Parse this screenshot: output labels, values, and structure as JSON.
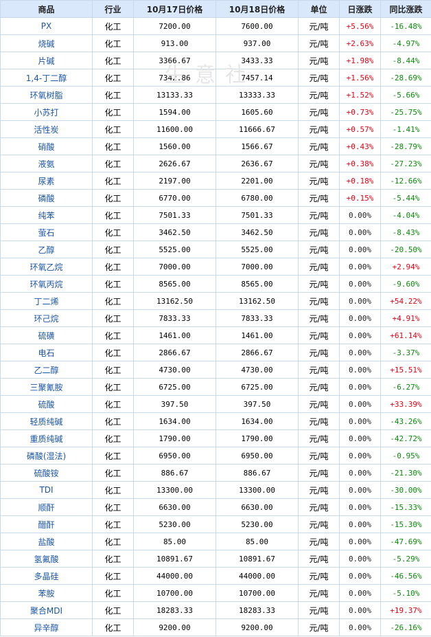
{
  "table": {
    "headers": [
      "商品",
      "行业",
      "10月17日价格",
      "10月18日价格",
      "单位",
      "日涨跌",
      "同比涨跌"
    ],
    "rows": [
      {
        "name": "PX",
        "industry": "化工",
        "p17": "7200.00",
        "p18": "7600.00",
        "unit": "元/吨",
        "day": "+5.56%",
        "yoy": "-16.48%"
      },
      {
        "name": "烧碱",
        "industry": "化工",
        "p17": "913.00",
        "p18": "937.00",
        "unit": "元/吨",
        "day": "+2.63%",
        "yoy": "-4.97%"
      },
      {
        "name": "片碱",
        "industry": "化工",
        "p17": "3366.67",
        "p18": "3433.33",
        "unit": "元/吨",
        "day": "+1.98%",
        "yoy": "-8.44%"
      },
      {
        "name": "1,4-丁二醇",
        "industry": "化工",
        "p17": "7342.86",
        "p18": "7457.14",
        "unit": "元/吨",
        "day": "+1.56%",
        "yoy": "-28.69%"
      },
      {
        "name": "环氧树脂",
        "industry": "化工",
        "p17": "13133.33",
        "p18": "13333.33",
        "unit": "元/吨",
        "day": "+1.52%",
        "yoy": "-5.66%"
      },
      {
        "name": "小苏打",
        "industry": "化工",
        "p17": "1594.00",
        "p18": "1605.60",
        "unit": "元/吨",
        "day": "+0.73%",
        "yoy": "-25.75%"
      },
      {
        "name": "活性炭",
        "industry": "化工",
        "p17": "11600.00",
        "p18": "11666.67",
        "unit": "元/吨",
        "day": "+0.57%",
        "yoy": "-1.41%"
      },
      {
        "name": "硝酸",
        "industry": "化工",
        "p17": "1560.00",
        "p18": "1566.67",
        "unit": "元/吨",
        "day": "+0.43%",
        "yoy": "-28.79%"
      },
      {
        "name": "液氨",
        "industry": "化工",
        "p17": "2626.67",
        "p18": "2636.67",
        "unit": "元/吨",
        "day": "+0.38%",
        "yoy": "-27.23%"
      },
      {
        "name": "尿素",
        "industry": "化工",
        "p17": "2197.00",
        "p18": "2201.00",
        "unit": "元/吨",
        "day": "+0.18%",
        "yoy": "-12.66%"
      },
      {
        "name": "磷酸",
        "industry": "化工",
        "p17": "6770.00",
        "p18": "6780.00",
        "unit": "元/吨",
        "day": "+0.15%",
        "yoy": "-5.44%"
      },
      {
        "name": "纯苯",
        "industry": "化工",
        "p17": "7501.33",
        "p18": "7501.33",
        "unit": "元/吨",
        "day": "0.00%",
        "yoy": "-4.04%"
      },
      {
        "name": "萤石",
        "industry": "化工",
        "p17": "3462.50",
        "p18": "3462.50",
        "unit": "元/吨",
        "day": "0.00%",
        "yoy": "-8.43%"
      },
      {
        "name": "乙醇",
        "industry": "化工",
        "p17": "5525.00",
        "p18": "5525.00",
        "unit": "元/吨",
        "day": "0.00%",
        "yoy": "-20.50%"
      },
      {
        "name": "环氧乙烷",
        "industry": "化工",
        "p17": "7000.00",
        "p18": "7000.00",
        "unit": "元/吨",
        "day": "0.00%",
        "yoy": "+2.94%"
      },
      {
        "name": "环氧丙烷",
        "industry": "化工",
        "p17": "8565.00",
        "p18": "8565.00",
        "unit": "元/吨",
        "day": "0.00%",
        "yoy": "-9.60%"
      },
      {
        "name": "丁二烯",
        "industry": "化工",
        "p17": "13162.50",
        "p18": "13162.50",
        "unit": "元/吨",
        "day": "0.00%",
        "yoy": "+54.22%"
      },
      {
        "name": "环己烷",
        "industry": "化工",
        "p17": "7833.33",
        "p18": "7833.33",
        "unit": "元/吨",
        "day": "0.00%",
        "yoy": "+4.91%"
      },
      {
        "name": "硫磺",
        "industry": "化工",
        "p17": "1461.00",
        "p18": "1461.00",
        "unit": "元/吨",
        "day": "0.00%",
        "yoy": "+61.14%"
      },
      {
        "name": "电石",
        "industry": "化工",
        "p17": "2866.67",
        "p18": "2866.67",
        "unit": "元/吨",
        "day": "0.00%",
        "yoy": "-3.37%"
      },
      {
        "name": "乙二醇",
        "industry": "化工",
        "p17": "4730.00",
        "p18": "4730.00",
        "unit": "元/吨",
        "day": "0.00%",
        "yoy": "+15.51%"
      },
      {
        "name": "三聚氰胺",
        "industry": "化工",
        "p17": "6725.00",
        "p18": "6725.00",
        "unit": "元/吨",
        "day": "0.00%",
        "yoy": "-6.27%"
      },
      {
        "name": "硫酸",
        "industry": "化工",
        "p17": "397.50",
        "p18": "397.50",
        "unit": "元/吨",
        "day": "0.00%",
        "yoy": "+33.39%"
      },
      {
        "name": "轻质纯碱",
        "industry": "化工",
        "p17": "1634.00",
        "p18": "1634.00",
        "unit": "元/吨",
        "day": "0.00%",
        "yoy": "-43.26%"
      },
      {
        "name": "重质纯碱",
        "industry": "化工",
        "p17": "1790.00",
        "p18": "1790.00",
        "unit": "元/吨",
        "day": "0.00%",
        "yoy": "-42.72%"
      },
      {
        "name": "磷酸(湿法)",
        "industry": "化工",
        "p17": "6950.00",
        "p18": "6950.00",
        "unit": "元/吨",
        "day": "0.00%",
        "yoy": "-0.95%"
      },
      {
        "name": "硫酸铵",
        "industry": "化工",
        "p17": "886.67",
        "p18": "886.67",
        "unit": "元/吨",
        "day": "0.00%",
        "yoy": "-21.30%"
      },
      {
        "name": "TDI",
        "industry": "化工",
        "p17": "13300.00",
        "p18": "13300.00",
        "unit": "元/吨",
        "day": "0.00%",
        "yoy": "-30.00%"
      },
      {
        "name": "顺酐",
        "industry": "化工",
        "p17": "6630.00",
        "p18": "6630.00",
        "unit": "元/吨",
        "day": "0.00%",
        "yoy": "-15.33%"
      },
      {
        "name": "醋酐",
        "industry": "化工",
        "p17": "5230.00",
        "p18": "5230.00",
        "unit": "元/吨",
        "day": "0.00%",
        "yoy": "-15.30%"
      },
      {
        "name": "盐酸",
        "industry": "化工",
        "p17": "85.00",
        "p18": "85.00",
        "unit": "元/吨",
        "day": "0.00%",
        "yoy": "-47.69%"
      },
      {
        "name": "氢氟酸",
        "industry": "化工",
        "p17": "10891.67",
        "p18": "10891.67",
        "unit": "元/吨",
        "day": "0.00%",
        "yoy": "-5.29%"
      },
      {
        "name": "多晶硅",
        "industry": "化工",
        "p17": "44000.00",
        "p18": "44000.00",
        "unit": "元/吨",
        "day": "0.00%",
        "yoy": "-46.56%"
      },
      {
        "name": "苯胺",
        "industry": "化工",
        "p17": "10700.00",
        "p18": "10700.00",
        "unit": "元/吨",
        "day": "0.00%",
        "yoy": "-5.10%"
      },
      {
        "name": "聚合MDI",
        "industry": "化工",
        "p17": "18283.33",
        "p18": "18283.33",
        "unit": "元/吨",
        "day": "0.00%",
        "yoy": "+19.37%"
      },
      {
        "name": "异辛醇",
        "industry": "化工",
        "p17": "9200.00",
        "p18": "9200.00",
        "unit": "元/吨",
        "day": "0.00%",
        "yoy": "-26.16%"
      }
    ]
  },
  "watermark": "生意社",
  "colors": {
    "up": "#e60012",
    "down": "#0a8a0a",
    "header_bg": "#d9e9fb",
    "name_link": "#1b56a8"
  }
}
